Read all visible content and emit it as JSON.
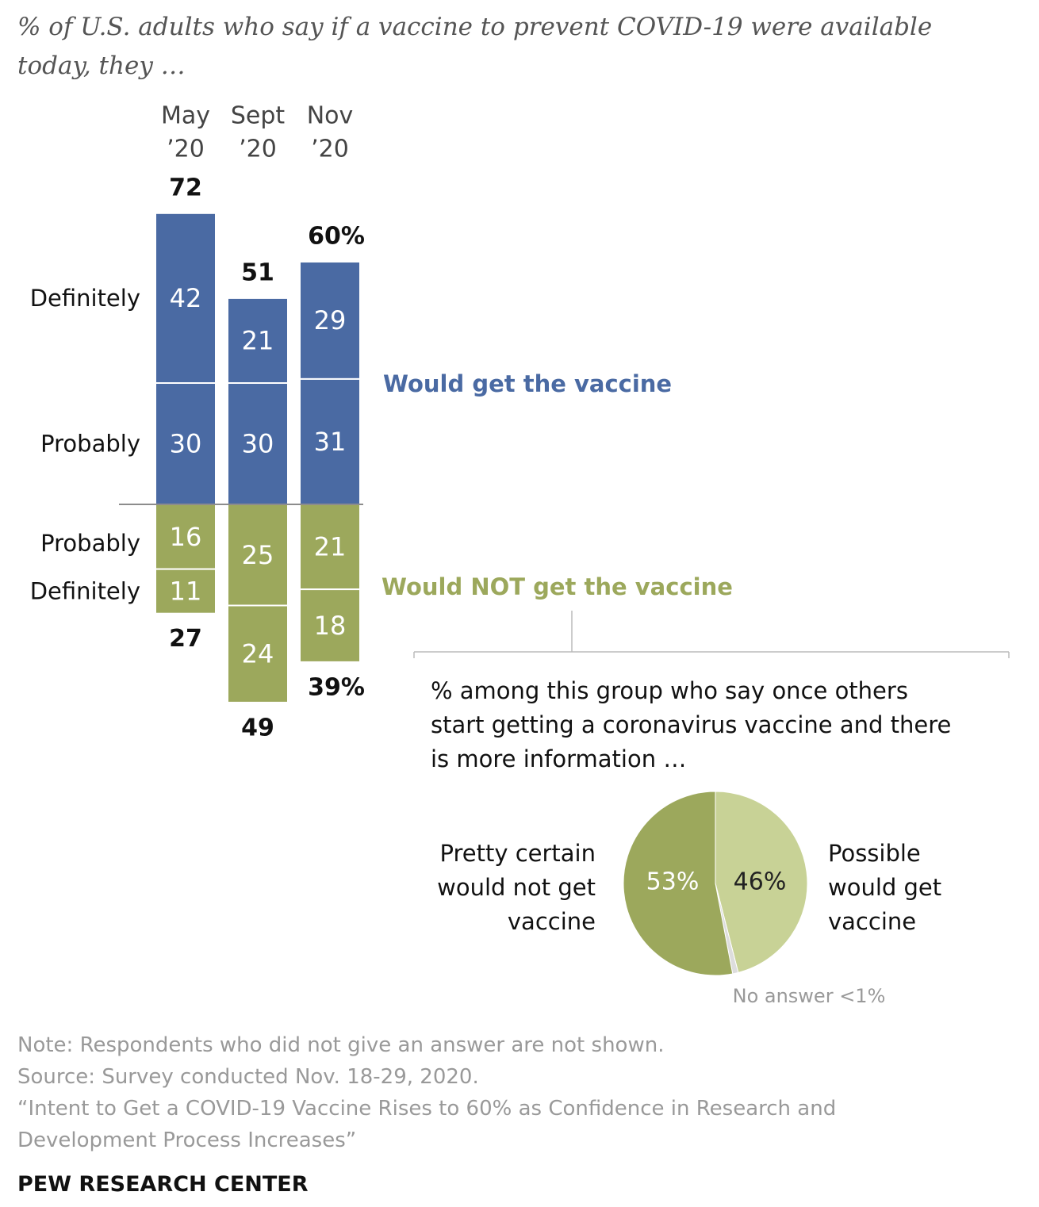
{
  "title": "% of U.S. adults who say if a vaccine to prevent COVID-19 were available today, they …",
  "colors": {
    "would_get": "#4a6aa3",
    "would_not": "#9ca85c",
    "pie_light": "#c8d296",
    "no_answer": "#dddddd",
    "gray_text": "#999999"
  },
  "chart_data": [
    {
      "type": "bar",
      "stacked": "diverging",
      "categories": [
        "May '20",
        "Sept '20",
        "Nov '20"
      ],
      "category_labels": [
        [
          "May",
          "’20"
        ],
        [
          "Sept",
          "’20"
        ],
        [
          "Nov",
          "’20"
        ]
      ],
      "series": [
        {
          "name": "Definitely",
          "group": "Would get the vaccine",
          "values": [
            42,
            21,
            29
          ]
        },
        {
          "name": "Probably",
          "group": "Would get the vaccine",
          "values": [
            30,
            30,
            31
          ]
        },
        {
          "name": "Probably",
          "group": "Would NOT get the vaccine",
          "values": [
            16,
            25,
            21
          ]
        },
        {
          "name": "Definitely",
          "group": "Would NOT get the vaccine",
          "values": [
            11,
            24,
            18
          ]
        }
      ],
      "totals_get": [
        "72",
        "51",
        "60%"
      ],
      "totals_not": [
        "27",
        "49",
        "39%"
      ],
      "group_labels": {
        "would_get": "Would get the vaccine",
        "would_not": "Would NOT get the vaccine"
      }
    },
    {
      "type": "pie",
      "title": "% among this group who say once others start getting a coronavirus vaccine and there is more information …",
      "title_lines": [
        "% among this group who say once others",
        "start getting a coronavirus vaccine and there",
        "is more information …"
      ],
      "slices": [
        {
          "label": "Possible would get vaccine",
          "label_lines": [
            "Possible",
            "would get",
            "vaccine"
          ],
          "value": 46,
          "display": "46%"
        },
        {
          "label": "No answer",
          "value": 1,
          "display": "No answer <1%"
        },
        {
          "label": "Pretty certain would not get vaccine",
          "label_lines": [
            "Pretty certain",
            "would not get",
            "vaccine"
          ],
          "value": 53,
          "display": "53%"
        }
      ]
    }
  ],
  "footnotes": {
    "note": "Note: Respondents who did not give an answer are not shown.",
    "source": "Source: Survey conducted Nov. 18-29, 2020.",
    "report_line1": "“Intent to Get a COVID-19 Vaccine Rises to 60% as Confidence in Research and",
    "report_line2": "Development Process Increases”"
  },
  "brand": "PEW RESEARCH CENTER"
}
